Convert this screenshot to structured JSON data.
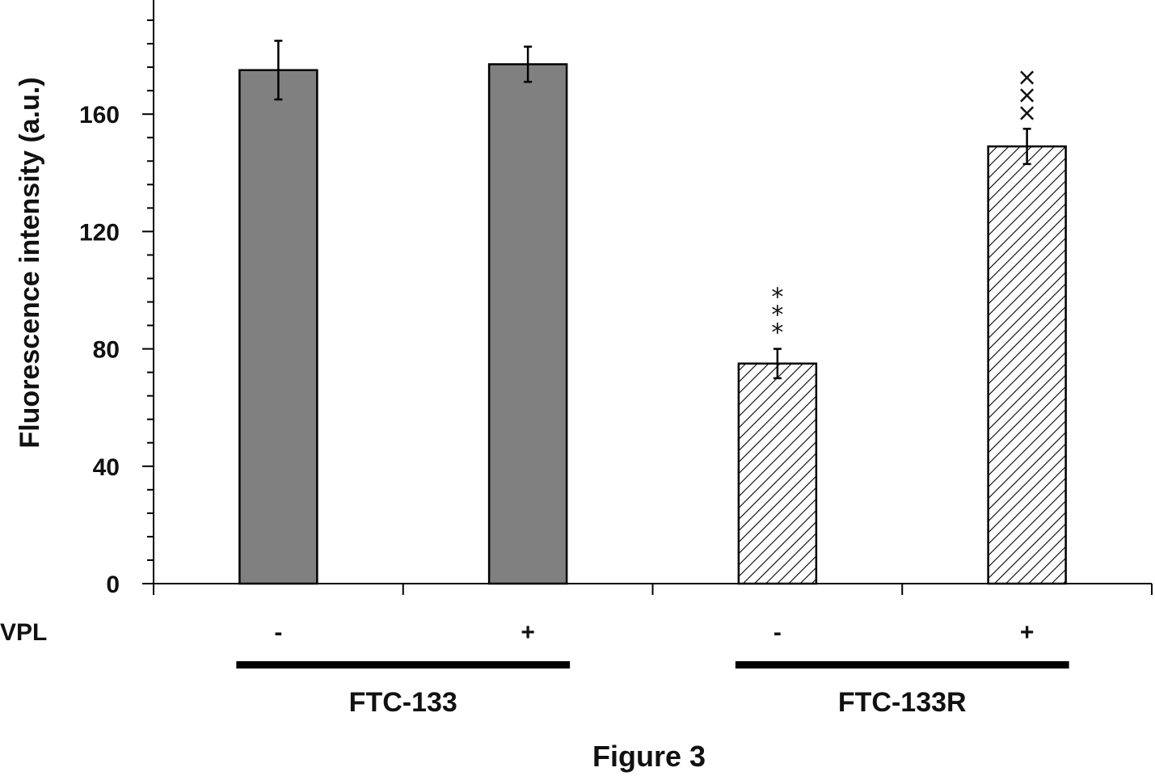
{
  "chart_data": {
    "type": "bar",
    "ylabel": "Fluorescence intensity  (a.u.)",
    "ylim": [
      0,
      200
    ],
    "yticks": [
      "0",
      "40",
      "80",
      "120",
      "160"
    ],
    "row_label": "VPL",
    "categories": [
      "-",
      "+",
      "-",
      "+"
    ],
    "values": [
      175,
      177,
      75,
      149
    ],
    "errors": [
      10,
      6,
      5,
      6
    ],
    "fill": [
      "solid",
      "solid",
      "hatched",
      "hatched"
    ],
    "annotations": [
      "",
      "",
      "***",
      "×××"
    ],
    "groups": [
      {
        "label": "FTC-133",
        "categories": [
          0,
          1
        ]
      },
      {
        "label": "FTC-133R",
        "categories": [
          2,
          3
        ]
      }
    ],
    "caption": "Figure 3"
  },
  "colors": {
    "bar_solid": "#808080",
    "bar_outline": "#000000",
    "hatch": "#000000"
  }
}
